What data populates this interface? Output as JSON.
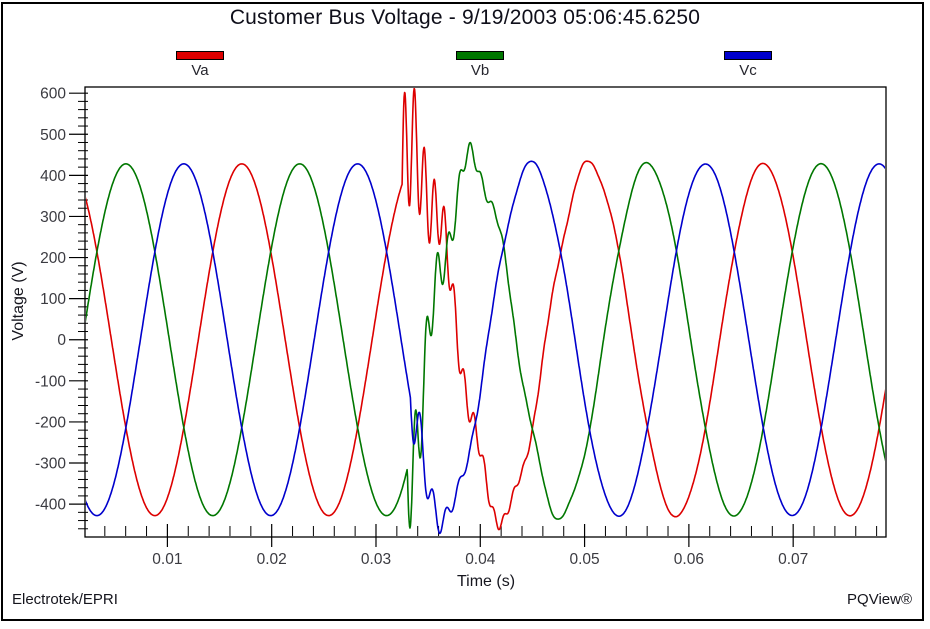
{
  "header": {
    "title": "Customer Bus Voltage - 9/19/2003 05:06:45.6250"
  },
  "footer": {
    "left": "Electrotek/EPRI",
    "right": "PQView®"
  },
  "colors": {
    "background": "#ffffff",
    "axis": "#000000",
    "va": "#dd0000",
    "vb": "#007700",
    "vc": "#0000cc"
  },
  "chart_data": {
    "type": "line",
    "title": "Customer Bus Voltage - 9/19/2003 05:06:45.6250",
    "xlabel": "Time (s)",
    "ylabel": "Voltage (V)",
    "xlim": [
      0.0021,
      0.0789
    ],
    "ylim": [
      -480,
      615
    ],
    "x_ticks": [
      0.01,
      0.02,
      0.03,
      0.04,
      0.05,
      0.06,
      0.07
    ],
    "x_tick_labels": [
      "0.01",
      "0.02",
      "0.03",
      "0.04",
      "0.05",
      "0.06",
      "0.07"
    ],
    "x_minor_step": 0.002,
    "y_ticks": [
      600,
      500,
      400,
      300,
      200,
      100,
      0,
      -100,
      -200,
      -300,
      -400
    ],
    "y_tick_labels": [
      "600",
      "500",
      "400",
      "300",
      "200",
      "100",
      "0",
      "-100",
      "-200",
      "-300",
      "-400"
    ],
    "y_minor_step": 20,
    "grid": false,
    "legend_position": "top",
    "axis_color": "#000000",
    "series": [
      {
        "name": "Va",
        "color": "#dd0000",
        "waveform": "sine",
        "amplitude_v": 428,
        "frequency_hz": 60,
        "phase_deg": 80,
        "peak_during_event_v": 590,
        "disturbance": {
          "start_s": 0.0325,
          "components": [
            {
              "amp_v": 190,
              "freq_hz": 1050,
              "tau_s": 0.0035
            },
            {
              "amp_v": 70,
              "freq_hz": 300,
              "tau_s": 0.009
            }
          ]
        }
      },
      {
        "name": "Vb",
        "color": "#007700",
        "waveform": "sine",
        "amplitude_v": 428,
        "frequency_hz": 60,
        "phase_deg": -40,
        "peak_during_event_v": -455,
        "disturbance": {
          "start_s": 0.033,
          "components": [
            {
              "amp_v": -150,
              "freq_hz": 950,
              "tau_s": 0.003
            },
            {
              "amp_v": -80,
              "freq_hz": 300,
              "tau_s": 0.008
            }
          ]
        }
      },
      {
        "name": "Vc",
        "color": "#0000cc",
        "waveform": "sine",
        "amplitude_v": 428,
        "frequency_hz": 60,
        "phase_deg": -160,
        "peak_during_event_v": -440,
        "disturbance": {
          "start_s": 0.0333,
          "components": [
            {
              "amp_v": -90,
              "freq_hz": 800,
              "tau_s": 0.0025
            },
            {
              "amp_v": 30,
              "freq_hz": 280,
              "tau_s": 0.008
            }
          ]
        }
      }
    ]
  }
}
